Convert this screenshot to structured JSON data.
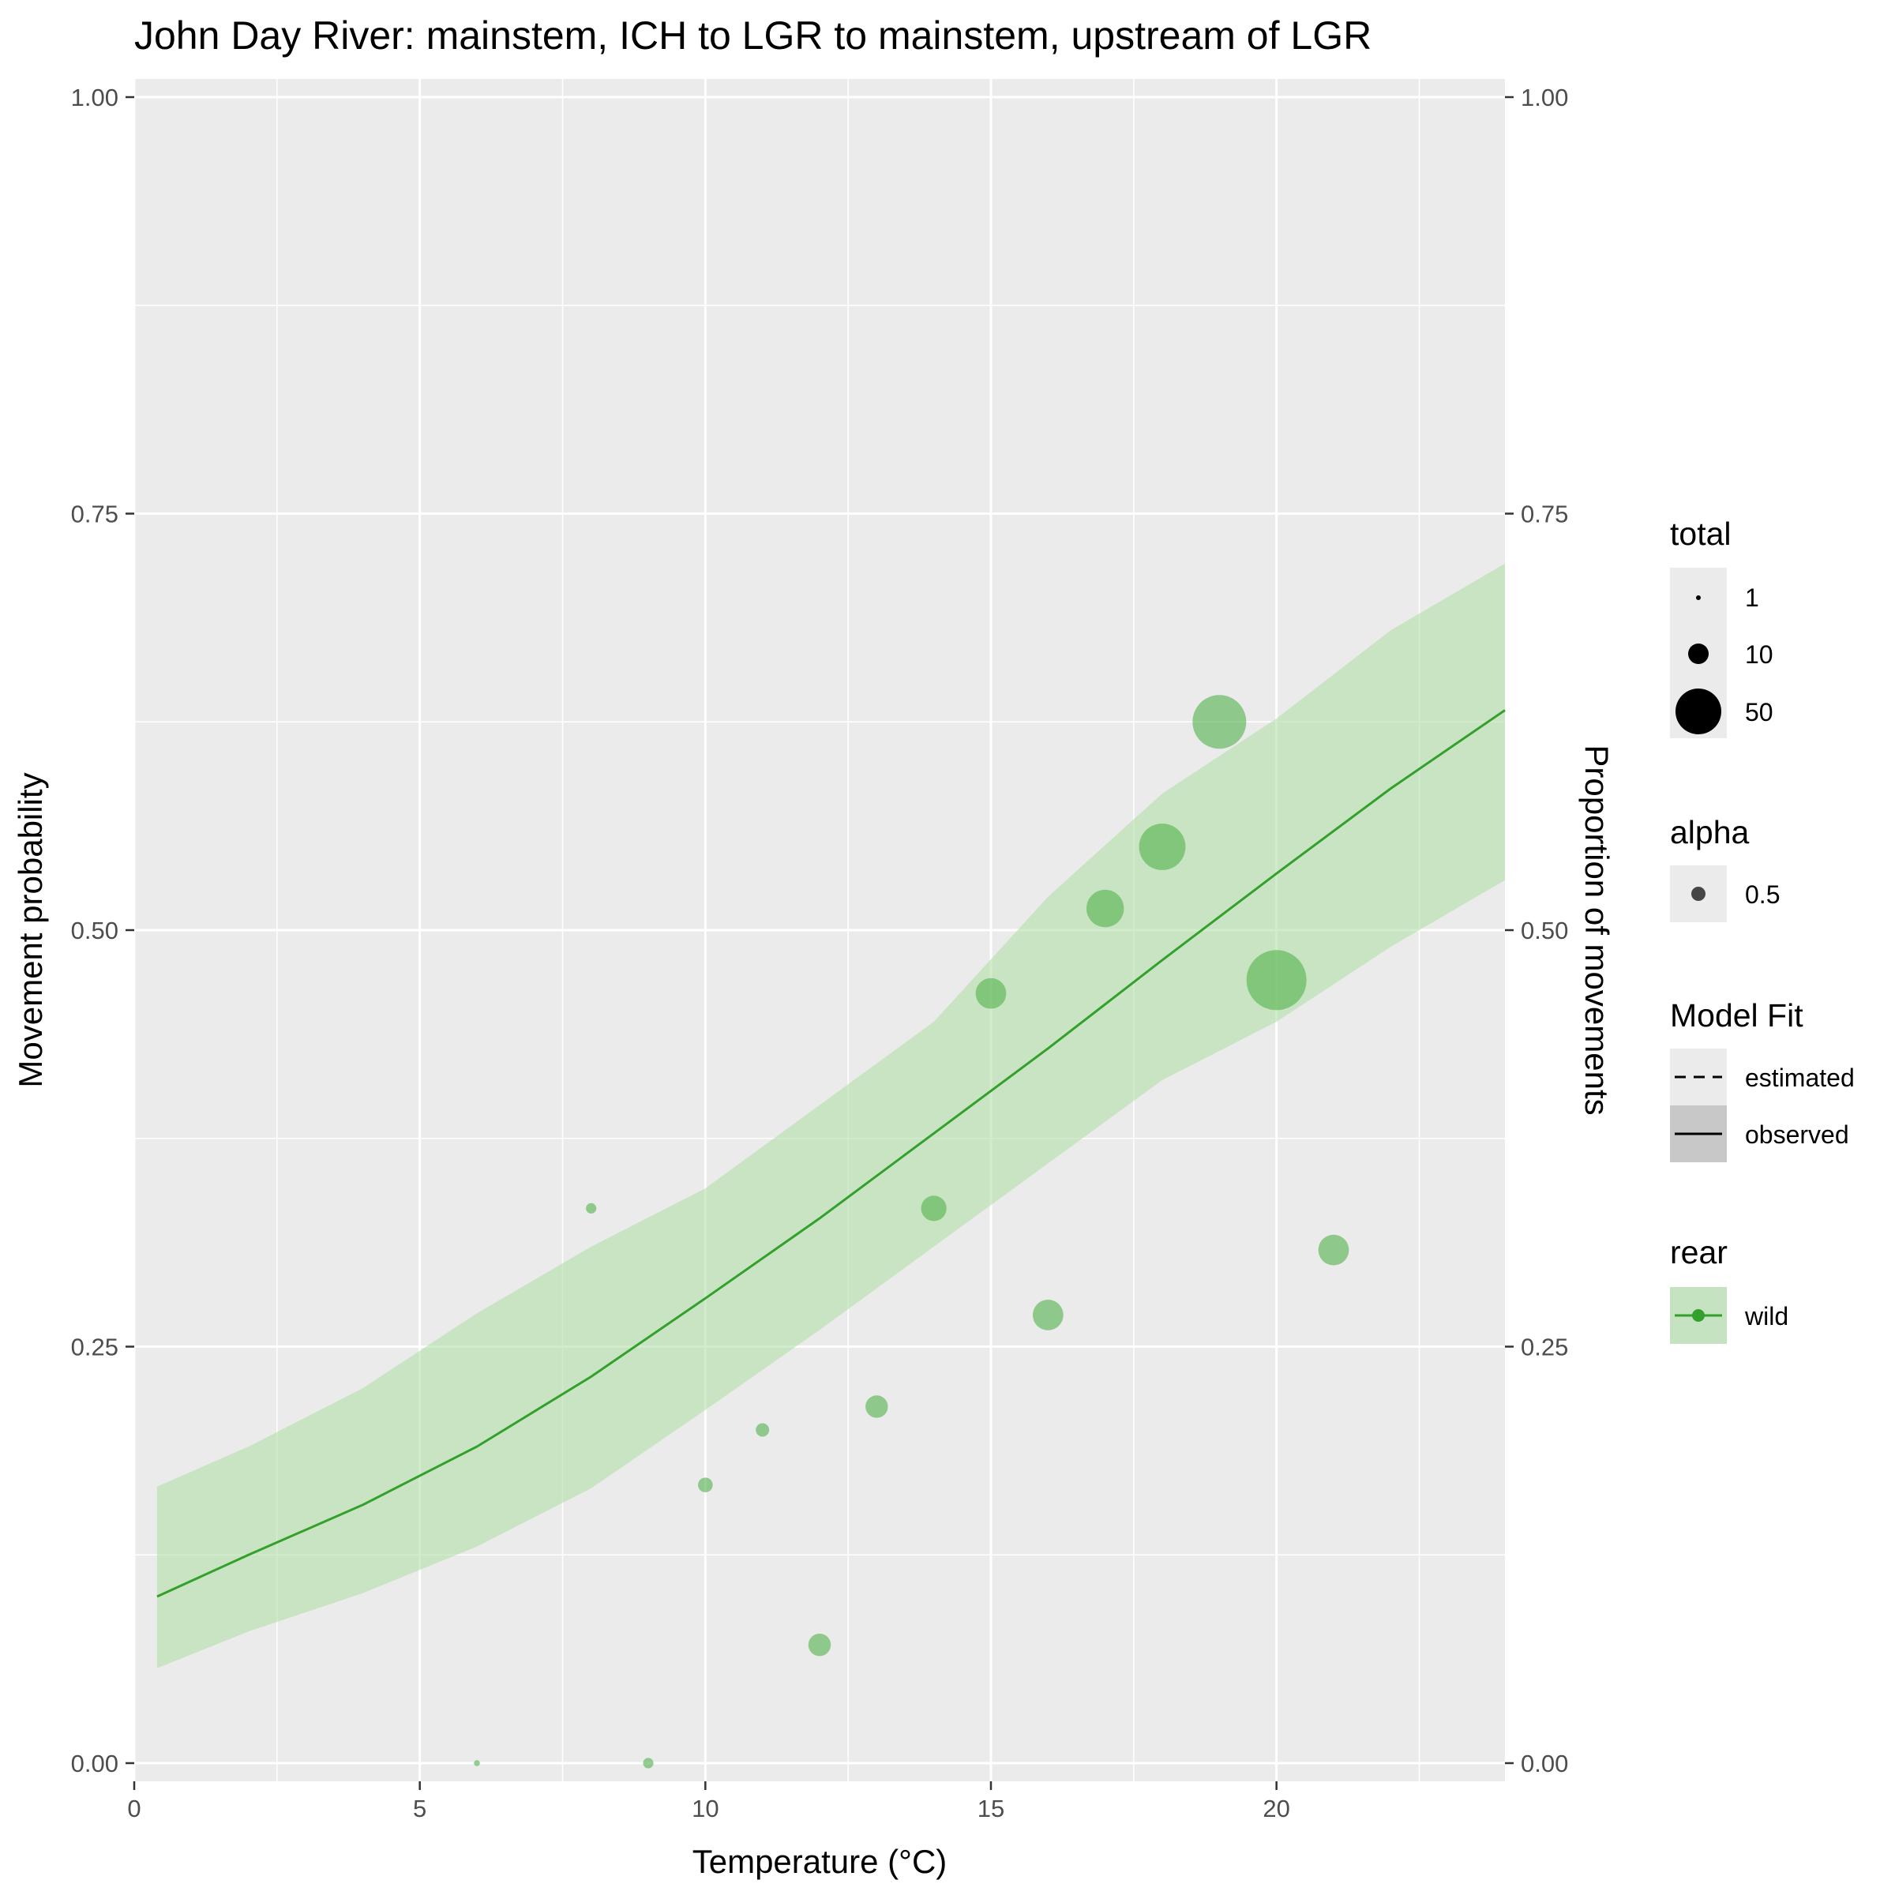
{
  "chart_data": {
    "type": "scatter",
    "title": "John Day River: mainstem, ICH to LGR to mainstem, upstream of LGR",
    "xlabel": "Temperature (°C)",
    "ylabel": "Movement probability",
    "ylabel_right": "Proportion of movements",
    "xlim": [
      0,
      24
    ],
    "ylim": [
      0,
      1
    ],
    "x_ticks": [
      0,
      5,
      10,
      15,
      20
    ],
    "x_tick_labels": [
      "0",
      "5",
      "10",
      "15",
      "20"
    ],
    "y_ticks": [
      0,
      0.25,
      0.5,
      0.75,
      1
    ],
    "y_tick_labels": [
      "0.00",
      "0.25",
      "0.50",
      "0.75",
      "1.00"
    ],
    "grid": true,
    "colors": {
      "fit_line": "#33a02c",
      "ribbon": "#b2dfa9",
      "points": "#5cb556",
      "panel": "#ebebeb",
      "gridline": "#ffffff"
    },
    "fit": {
      "x": [
        0.4,
        2,
        4,
        6,
        8,
        10,
        12,
        14,
        16,
        18,
        20,
        22,
        24
      ],
      "y": [
        0.1,
        0.125,
        0.155,
        0.19,
        0.232,
        0.279,
        0.327,
        0.378,
        0.429,
        0.482,
        0.534,
        0.585,
        0.632
      ],
      "lower": [
        0.057,
        0.079,
        0.102,
        0.13,
        0.165,
        0.212,
        0.26,
        0.31,
        0.36,
        0.41,
        0.445,
        0.49,
        0.53
      ],
      "upper": [
        0.166,
        0.19,
        0.225,
        0.27,
        0.31,
        0.345,
        0.395,
        0.445,
        0.52,
        0.582,
        0.627,
        0.68,
        0.72
      ]
    },
    "points": [
      {
        "x": 6,
        "y": 0.0,
        "total": 1
      },
      {
        "x": 8,
        "y": 0.333,
        "total": 3
      },
      {
        "x": 9,
        "y": 0.0,
        "total": 3
      },
      {
        "x": 10,
        "y": 0.167,
        "total": 6
      },
      {
        "x": 11,
        "y": 0.2,
        "total": 5
      },
      {
        "x": 12,
        "y": 0.071,
        "total": 14
      },
      {
        "x": 13,
        "y": 0.214,
        "total": 14
      },
      {
        "x": 14,
        "y": 0.333,
        "total": 18
      },
      {
        "x": 15,
        "y": 0.462,
        "total": 26
      },
      {
        "x": 16,
        "y": 0.269,
        "total": 26
      },
      {
        "x": 17,
        "y": 0.513,
        "total": 39
      },
      {
        "x": 18,
        "y": 0.55,
        "total": 60
      },
      {
        "x": 19,
        "y": 0.625,
        "total": 80
      },
      {
        "x": 20,
        "y": 0.47,
        "total": 100
      },
      {
        "x": 21,
        "y": 0.308,
        "total": 26
      }
    ],
    "legends": {
      "total": {
        "title": "total",
        "entries": [
          {
            "label": "1",
            "value": 1
          },
          {
            "label": "10",
            "value": 10
          },
          {
            "label": "50",
            "value": 50
          }
        ]
      },
      "alpha": {
        "title": "alpha",
        "entries": [
          {
            "label": "0.5"
          }
        ]
      },
      "model_fit": {
        "title": "Model Fit",
        "entries": [
          {
            "label": "estimated",
            "linetype": "dashed"
          },
          {
            "label": "observed",
            "linetype": "solid"
          }
        ]
      },
      "rear": {
        "title": "rear",
        "entries": [
          {
            "label": "wild"
          }
        ]
      }
    }
  }
}
